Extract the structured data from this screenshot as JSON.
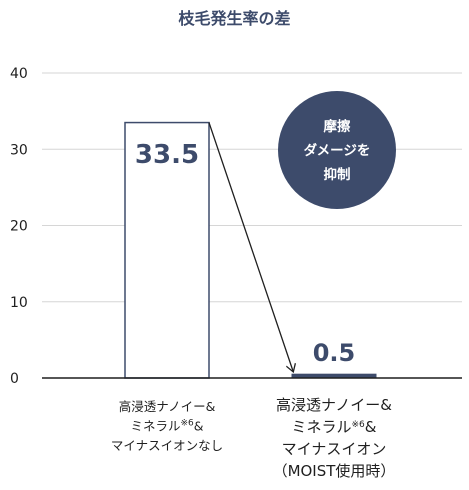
{
  "chart_data": {
    "type": "bar",
    "title": "枝毛発生率の差",
    "xlabel": "",
    "ylabel": "",
    "ylim": [
      0,
      40
    ],
    "yticks": [
      0,
      10,
      20,
      30,
      40
    ],
    "grid": true,
    "categories": [
      {
        "lines": [
          {
            "text": "高浸透ナノイー&"
          },
          {
            "text": "ミネラル",
            "sup": "※6",
            "after": "&"
          },
          {
            "text": "マイナスイオンなし"
          }
        ]
      },
      {
        "lines": [
          {
            "text": "高浸透ナノイー&"
          },
          {
            "text": "ミネラル",
            "sup": "※6",
            "after": "&"
          },
          {
            "text": "マイナスイオン"
          },
          {
            "text": "（MOIST使用時）"
          }
        ]
      }
    ],
    "values": [
      33.5,
      0.5
    ],
    "value_labels": [
      "33.5",
      "0.5"
    ],
    "annotation": {
      "lines": [
        "摩擦",
        "ダメージを",
        "抑制"
      ]
    }
  },
  "colors": {
    "title": "#3d4b6b",
    "bar_outline": "#3d4b6b",
    "bar1_fill": "#ffffff",
    "bar2_fill": "#3d4b6b",
    "value_label": "#3d4b6b",
    "badge_fill": "#3d4b6b",
    "badge_text": "#ffffff",
    "grid": "#d6d6d6",
    "axis": "#1f1f1f",
    "tick_text": "#1f1f1f",
    "arrow": "#1f1f1f"
  }
}
